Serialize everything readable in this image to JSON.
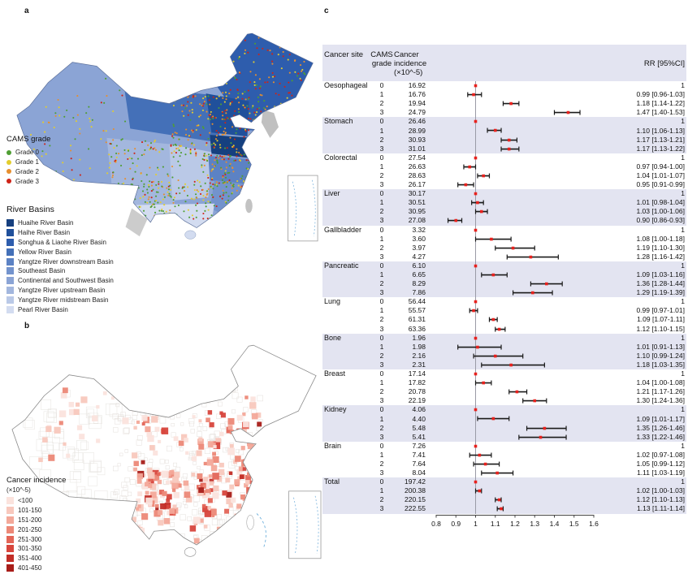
{
  "panels": {
    "a": "a",
    "b": "b",
    "c": "c"
  },
  "panel_a": {
    "cams_legend": {
      "title": "CAMS grade",
      "items": [
        {
          "label": "Grade 0",
          "color": "#4f9e33"
        },
        {
          "label": "Grade 1",
          "color": "#e3cd2d"
        },
        {
          "label": "Grade 2",
          "color": "#e78f2e"
        },
        {
          "label": "Grade 3",
          "color": "#cf2317"
        }
      ]
    },
    "basin_legend": {
      "title": "River Basins",
      "items": [
        {
          "label": "Huaihe River Basin",
          "color": "#16407f"
        },
        {
          "label": "Haihe River Basin",
          "color": "#20509b"
        },
        {
          "label": "Songhua & Liaohe River Basin",
          "color": "#2e5dad"
        },
        {
          "label": "Yellow River Basin",
          "color": "#4470b8"
        },
        {
          "label": "Yangtze River downstream Basin",
          "color": "#5c82c4"
        },
        {
          "label": "Southeast Basin",
          "color": "#7393cd"
        },
        {
          "label": "Continental and Southwest Basin",
          "color": "#8ba4d5"
        },
        {
          "label": "Yangtze River upstream Basin",
          "color": "#a3b7de"
        },
        {
          "label": "Yangtze River midstream Basin",
          "color": "#bac9e7"
        },
        {
          "label": "Pearl River Basin",
          "color": "#d3dcf0"
        }
      ]
    }
  },
  "panel_b": {
    "legend": {
      "title": "Cancer incidence",
      "subtitle": "(×10^-5)",
      "items": [
        {
          "label": "<100",
          "color": "#fbe3dd"
        },
        {
          "label": "101-150",
          "color": "#f8c8bd"
        },
        {
          "label": "151-200",
          "color": "#f3a899"
        },
        {
          "label": "201-250",
          "color": "#ec8877"
        },
        {
          "label": "251-300",
          "color": "#e36557"
        },
        {
          "label": "301-350",
          "color": "#d7453c"
        },
        {
          "label": "351-400",
          "color": "#c22d27"
        },
        {
          "label": "401-450",
          "color": "#a81d19"
        }
      ]
    }
  },
  "chart_data": {
    "type": "forest",
    "xlim": [
      0.8,
      1.6
    ],
    "x_ticks": [
      "0.8",
      "0.9",
      "1",
      "1.1",
      "1.2",
      "1.3",
      "1.4",
      "1.5",
      "1.6"
    ],
    "ref_value": 1,
    "point_color": "#e8211d",
    "band_color": "#e3e4f1",
    "header": {
      "site": "Cancer site",
      "grade1": "CAMS",
      "grade2": "grade",
      "inc1": "Cancer",
      "inc2": "incidence",
      "inc3": "(×10^-5)",
      "rr": "RR [95%CI]"
    },
    "groups": [
      {
        "site": "Oesophageal",
        "rows": [
          {
            "grade": "0",
            "incidence": "16.92",
            "rr": 1,
            "rr_label": "1"
          },
          {
            "grade": "1",
            "incidence": "16.76",
            "rr": 0.99,
            "lo": 0.96,
            "hi": 1.03,
            "rr_label": "0.99 [0.96-1.03]"
          },
          {
            "grade": "2",
            "incidence": "19.94",
            "rr": 1.18,
            "lo": 1.14,
            "hi": 1.22,
            "rr_label": "1.18 [1.14-1.22]"
          },
          {
            "grade": "3",
            "incidence": "24.79",
            "rr": 1.47,
            "lo": 1.4,
            "hi": 1.53,
            "rr_label": "1.47 [1.40-1.53]"
          }
        ]
      },
      {
        "site": "Stomach",
        "rows": [
          {
            "grade": "0",
            "incidence": "26.46",
            "rr": 1,
            "rr_label": "1"
          },
          {
            "grade": "1",
            "incidence": "28.99",
            "rr": 1.1,
            "lo": 1.06,
            "hi": 1.13,
            "rr_label": "1.10 [1.06-1.13]"
          },
          {
            "grade": "2",
            "incidence": "30.93",
            "rr": 1.17,
            "lo": 1.13,
            "hi": 1.21,
            "rr_label": "1.17 [1.13-1.21]"
          },
          {
            "grade": "3",
            "incidence": "31.01",
            "rr": 1.17,
            "lo": 1.13,
            "hi": 1.22,
            "rr_label": "1.17 [1.13-1.22]"
          }
        ]
      },
      {
        "site": "Colorectal",
        "rows": [
          {
            "grade": "0",
            "incidence": "27.54",
            "rr": 1,
            "rr_label": "1"
          },
          {
            "grade": "1",
            "incidence": "26.63",
            "rr": 0.97,
            "lo": 0.94,
            "hi": 1.0,
            "rr_label": "0.97 [0.94-1.00]"
          },
          {
            "grade": "2",
            "incidence": "28.63",
            "rr": 1.04,
            "lo": 1.01,
            "hi": 1.07,
            "rr_label": "1.04 [1.01-1.07]"
          },
          {
            "grade": "3",
            "incidence": "26.17",
            "rr": 0.95,
            "lo": 0.91,
            "hi": 0.99,
            "rr_label": "0.95 [0.91-0.99]"
          }
        ]
      },
      {
        "site": "Liver",
        "rows": [
          {
            "grade": "0",
            "incidence": "30.17",
            "rr": 1,
            "rr_label": "1"
          },
          {
            "grade": "1",
            "incidence": "30.51",
            "rr": 1.01,
            "lo": 0.98,
            "hi": 1.04,
            "rr_label": "1.01 [0.98-1.04]"
          },
          {
            "grade": "2",
            "incidence": "30.95",
            "rr": 1.03,
            "lo": 1.0,
            "hi": 1.06,
            "rr_label": "1.03 [1.00-1.06]"
          },
          {
            "grade": "3",
            "incidence": "27.08",
            "rr": 0.9,
            "lo": 0.86,
            "hi": 0.93,
            "rr_label": "0.90 [0.86-0.93]"
          }
        ]
      },
      {
        "site": "Gallbladder",
        "rows": [
          {
            "grade": "0",
            "incidence": "3.32",
            "rr": 1,
            "rr_label": "1"
          },
          {
            "grade": "1",
            "incidence": "3.60",
            "rr": 1.08,
            "lo": 1.0,
            "hi": 1.18,
            "rr_label": "1.08 [1.00-1.18]"
          },
          {
            "grade": "2",
            "incidence": "3.97",
            "rr": 1.19,
            "lo": 1.1,
            "hi": 1.3,
            "rr_label": "1.19 [1.10-1.30]"
          },
          {
            "grade": "3",
            "incidence": "4.27",
            "rr": 1.28,
            "lo": 1.16,
            "hi": 1.42,
            "rr_label": "1.28 [1.16-1.42]"
          }
        ]
      },
      {
        "site": "Pancreatic",
        "rows": [
          {
            "grade": "0",
            "incidence": "6.10",
            "rr": 1,
            "rr_label": "1"
          },
          {
            "grade": "1",
            "incidence": "6.65",
            "rr": 1.09,
            "lo": 1.03,
            "hi": 1.16,
            "rr_label": "1.09 [1.03-1.16]"
          },
          {
            "grade": "2",
            "incidence": "8.29",
            "rr": 1.36,
            "lo": 1.28,
            "hi": 1.44,
            "rr_label": "1.36 [1.28-1.44]"
          },
          {
            "grade": "3",
            "incidence": "7.86",
            "rr": 1.29,
            "lo": 1.19,
            "hi": 1.39,
            "rr_label": "1.29 [1.19-1.39]"
          }
        ]
      },
      {
        "site": "Lung",
        "rows": [
          {
            "grade": "0",
            "incidence": "56.44",
            "rr": 1,
            "rr_label": "1"
          },
          {
            "grade": "1",
            "incidence": "55.57",
            "rr": 0.99,
            "lo": 0.97,
            "hi": 1.01,
            "rr_label": "0.99 [0.97-1.01]"
          },
          {
            "grade": "2",
            "incidence": "61.31",
            "rr": 1.09,
            "lo": 1.07,
            "hi": 1.11,
            "rr_label": "1.09 [1.07-1.11]"
          },
          {
            "grade": "3",
            "incidence": "63.36",
            "rr": 1.12,
            "lo": 1.1,
            "hi": 1.15,
            "rr_label": "1.12 [1.10-1.15]"
          }
        ]
      },
      {
        "site": "Bone",
        "rows": [
          {
            "grade": "0",
            "incidence": "1.96",
            "rr": 1,
            "rr_label": "1"
          },
          {
            "grade": "1",
            "incidence": "1.98",
            "rr": 1.01,
            "lo": 0.91,
            "hi": 1.13,
            "rr_label": "1.01 [0.91-1.13]"
          },
          {
            "grade": "2",
            "incidence": "2.16",
            "rr": 1.1,
            "lo": 0.99,
            "hi": 1.24,
            "rr_label": "1.10 [0.99-1.24]"
          },
          {
            "grade": "3",
            "incidence": "2.31",
            "rr": 1.18,
            "lo": 1.03,
            "hi": 1.35,
            "rr_label": "1.18 [1.03-1.35]"
          }
        ]
      },
      {
        "site": "Breast",
        "rows": [
          {
            "grade": "0",
            "incidence": "17.14",
            "rr": 1,
            "rr_label": "1"
          },
          {
            "grade": "1",
            "incidence": "17.82",
            "rr": 1.04,
            "lo": 1.0,
            "hi": 1.08,
            "rr_label": "1.04 [1.00-1.08]"
          },
          {
            "grade": "2",
            "incidence": "20.78",
            "rr": 1.21,
            "lo": 1.17,
            "hi": 1.26,
            "rr_label": "1.21 [1.17-1.26]"
          },
          {
            "grade": "3",
            "incidence": "22.19",
            "rr": 1.3,
            "lo": 1.24,
            "hi": 1.36,
            "rr_label": "1.30 [1.24-1.36]"
          }
        ]
      },
      {
        "site": "Kidney",
        "rows": [
          {
            "grade": "0",
            "incidence": "4.06",
            "rr": 1,
            "rr_label": "1"
          },
          {
            "grade": "1",
            "incidence": "4.40",
            "rr": 1.09,
            "lo": 1.01,
            "hi": 1.17,
            "rr_label": "1.09 [1.01-1.17]"
          },
          {
            "grade": "2",
            "incidence": "5.48",
            "rr": 1.35,
            "lo": 1.26,
            "hi": 1.46,
            "rr_label": "1.35 [1.26-1.46]"
          },
          {
            "grade": "3",
            "incidence": "5.41",
            "rr": 1.33,
            "lo": 1.22,
            "hi": 1.46,
            "rr_label": "1.33 [1.22-1.46]"
          }
        ]
      },
      {
        "site": "Brain",
        "rows": [
          {
            "grade": "0",
            "incidence": "7.26",
            "rr": 1,
            "rr_label": "1"
          },
          {
            "grade": "1",
            "incidence": "7.41",
            "rr": 1.02,
            "lo": 0.97,
            "hi": 1.08,
            "rr_label": "1.02 [0.97-1.08]"
          },
          {
            "grade": "2",
            "incidence": "7.64",
            "rr": 1.05,
            "lo": 0.99,
            "hi": 1.12,
            "rr_label": "1.05 [0.99-1.12]"
          },
          {
            "grade": "3",
            "incidence": "8.04",
            "rr": 1.11,
            "lo": 1.03,
            "hi": 1.19,
            "rr_label": "1.11 [1.03-1.19]"
          }
        ]
      },
      {
        "site": "Total",
        "rows": [
          {
            "grade": "0",
            "incidence": "197.42",
            "rr": 1,
            "rr_label": "1"
          },
          {
            "grade": "1",
            "incidence": "200.38",
            "rr": 1.02,
            "lo": 1.0,
            "hi": 1.03,
            "rr_label": "1.02 [1.00-1.03]"
          },
          {
            "grade": "2",
            "incidence": "220.15",
            "rr": 1.12,
            "lo": 1.1,
            "hi": 1.13,
            "rr_label": "1.12 [1.10-1.13]"
          },
          {
            "grade": "3",
            "incidence": "222.55",
            "rr": 1.13,
            "lo": 1.11,
            "hi": 1.14,
            "rr_label": "1.13 [1.11-1.14]"
          }
        ]
      }
    ]
  }
}
